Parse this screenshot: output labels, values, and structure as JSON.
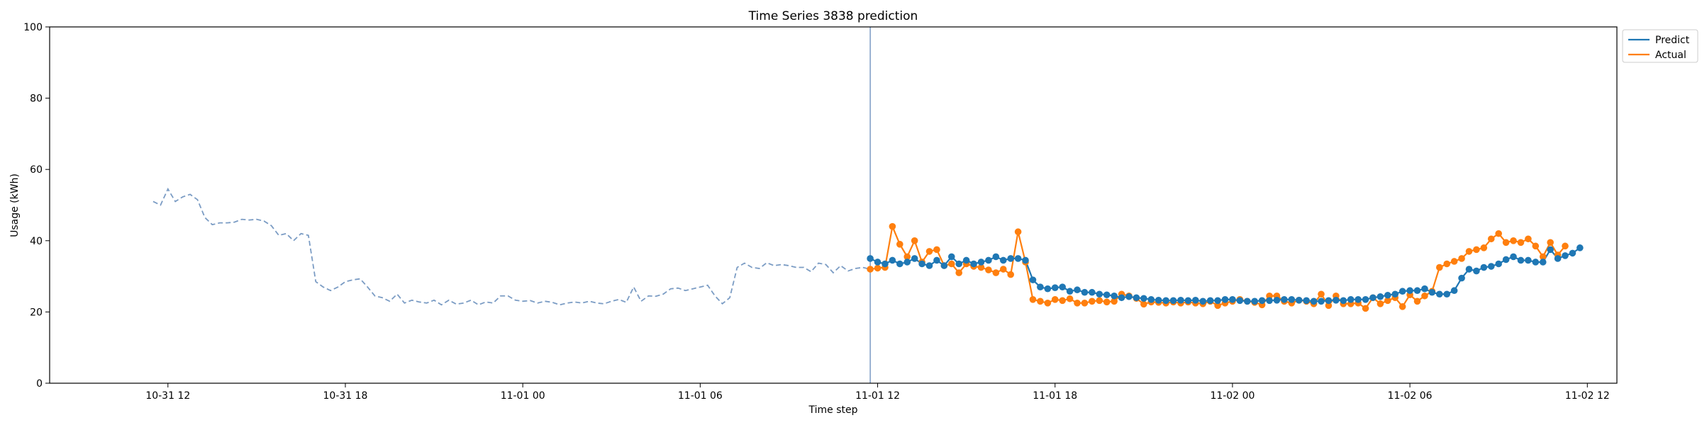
{
  "chart_data": {
    "type": "line",
    "title": "Time Series 3838 prediction",
    "xlabel": "Time step",
    "ylabel": "Usage (kWh)",
    "ylim": [
      0,
      100
    ],
    "yticks": [
      0,
      20,
      40,
      60,
      80,
      100
    ],
    "xlim": [
      "2023-10-31T08:00",
      "2023-11-02T13:00"
    ],
    "xticks": [
      {
        "label": "10-31 12",
        "t": "2023-10-31T12:00"
      },
      {
        "label": "10-31 18",
        "t": "2023-10-31T18:00"
      },
      {
        "label": "11-01 00",
        "t": "2023-11-01T00:00"
      },
      {
        "label": "11-01 06",
        "t": "2023-11-01T06:00"
      },
      {
        "label": "11-01 12",
        "t": "2023-11-01T12:00"
      },
      {
        "label": "11-01 18",
        "t": "2023-11-01T18:00"
      },
      {
        "label": "11-02 00",
        "t": "2023-11-02T00:00"
      },
      {
        "label": "11-02 06",
        "t": "2023-11-02T06:00"
      },
      {
        "label": "11-02 12",
        "t": "2023-11-02T12:00"
      }
    ],
    "grid": false,
    "legend_position": "outside-top-right",
    "forecast_start": "2023-11-01T11:45",
    "history": {
      "start": "2023-10-31T11:30",
      "step_minutes": 15,
      "style": "dashed",
      "color": "#7b9cc4",
      "values": [
        51,
        50,
        54.5,
        51,
        52.3,
        53,
        51.5,
        46.5,
        44.5,
        45,
        45,
        45.2,
        46,
        45.8,
        46,
        45.5,
        44.2,
        41.5,
        42,
        40,
        42,
        41.5,
        28.5,
        27,
        26,
        27,
        28.5,
        29,
        29.3,
        27,
        24.5,
        24,
        23,
        25,
        22.5,
        23.3,
        22.8,
        22.5,
        23.3,
        22,
        23.3,
        22.2,
        22.5,
        23.3,
        22,
        22.8,
        22.5,
        24.5,
        24.5,
        23.3,
        23,
        23.2,
        22.5,
        23,
        22.7,
        22,
        22.5,
        22.8,
        22.5,
        23,
        22.5,
        22.3,
        23,
        23.5,
        22.7,
        27,
        23,
        24.5,
        24.4,
        25,
        26.5,
        26.7,
        26,
        26.5,
        27,
        27.5,
        24.5,
        22.3,
        24,
        32.5,
        33.7,
        32.5,
        32.2,
        33.8,
        33,
        33.3,
        33,
        32.5,
        32.5,
        31.3,
        33.7,
        33.3,
        31,
        33,
        31.5,
        32.2,
        32.5,
        32
      ]
    },
    "series": [
      {
        "name": "Predict",
        "color": "#1f77b4",
        "start": "2023-11-01T11:45",
        "step_minutes": 15,
        "values": [
          35,
          34,
          33.5,
          34.5,
          33.5,
          34,
          35,
          33.5,
          33,
          34.5,
          33,
          35.5,
          33.5,
          34.5,
          33.5,
          34,
          34.5,
          35.5,
          34.5,
          35,
          35,
          34.5,
          29,
          27,
          26.5,
          26.8,
          27,
          25.8,
          26.2,
          25.5,
          25.5,
          25,
          24.8,
          24.5,
          24,
          24.3,
          24,
          23.8,
          23.5,
          23.3,
          23.2,
          23.2,
          23.3,
          23.2,
          23.3,
          23,
          23.2,
          23.2,
          23.5,
          23.5,
          23.2,
          23,
          23,
          23.2,
          23.2,
          23.3,
          23.5,
          23.5,
          23.3,
          23.2,
          23,
          23,
          23.2,
          23.3,
          23.2,
          23.5,
          23.5,
          23.5,
          24,
          24.3,
          24.7,
          25,
          25.8,
          26,
          26,
          26.5,
          25.5,
          25,
          25,
          26,
          29.5,
          32,
          31.5,
          32.5,
          32.8,
          33.5,
          34.7,
          35.5,
          34.5,
          34.5,
          34,
          34,
          37.5,
          35,
          35.8,
          36.5,
          38
        ]
      },
      {
        "name": "Actual",
        "color": "#ff7f0e",
        "start": "2023-11-01T11:45",
        "step_minutes": 15,
        "values": [
          32,
          32.3,
          32.5,
          44,
          39,
          35.5,
          40,
          34,
          37,
          37.5,
          33,
          33.5,
          31,
          33.5,
          32.8,
          32.5,
          31.8,
          31,
          32,
          30.5,
          42.5,
          34,
          23.5,
          23,
          22.5,
          23.5,
          23.2,
          23.7,
          22.5,
          22.5,
          23,
          23.2,
          22.8,
          23,
          25,
          24.5,
          23.8,
          22.2,
          22.8,
          22.7,
          22.5,
          22.8,
          22.5,
          22.8,
          22.5,
          22.3,
          23,
          21.8,
          22.5,
          23,
          23.5,
          23,
          22.7,
          22,
          24.5,
          24.5,
          23,
          22.5,
          23.3,
          23,
          22.3,
          25,
          21.8,
          24.5,
          22.3,
          22.3,
          22.5,
          21,
          24,
          22.3,
          23.2,
          24,
          21.5,
          24.8,
          23,
          24.5,
          25.8,
          32.5,
          33.5,
          34.2,
          35,
          37,
          37.5,
          38,
          40.5,
          42,
          39.5,
          40,
          39.5,
          40.5,
          38.5,
          35.5,
          39.5,
          36,
          38.5
        ]
      }
    ]
  }
}
